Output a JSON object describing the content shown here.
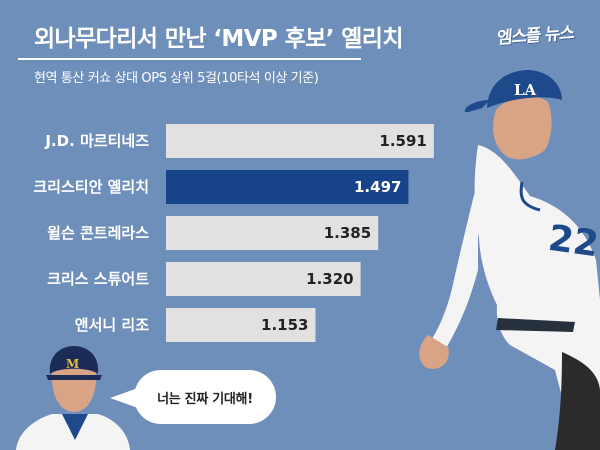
{
  "header": {
    "title": "외나무다리서 만난 ‘MVP 후보’ 옐리치",
    "subtitle": "현역 통산 커쇼 상대 OPS 상위 5걸(10타석 이상 기준)",
    "logo": "엠스플 뉴스"
  },
  "chart_data": {
    "type": "bar",
    "orientation": "horizontal",
    "title": "외나무다리서 만난 ‘MVP 후보’ 옐리치",
    "subtitle": "현역 통산 커쇼 상대 OPS 상위 5걸(10타석 이상 기준)",
    "categories": [
      "J.D. 마르티네즈",
      "크리스티안 옐리치",
      "윌슨 콘트레라스",
      "크리스 스튜어트",
      "앤서니 리조"
    ],
    "values": [
      1.591,
      1.497,
      1.385,
      1.32,
      1.153
    ],
    "value_labels": [
      "1.591",
      "1.497",
      "1.385",
      "1.320",
      "1.153"
    ],
    "highlight_index": 1,
    "xlim": [
      0.6,
      1.61
    ],
    "grid": false,
    "legend": "none",
    "colors": {
      "bar": "#e1e1e1",
      "highlight": "#17438a",
      "label_default": "#222222",
      "label_highlight": "#ffffff"
    }
  },
  "callout": {
    "speech": "너는 진짜 기대해!"
  },
  "colors": {
    "background": "#6f8fbb",
    "jersey": "#f4f4f4",
    "team_blue": "#1e4a8c",
    "skin": "#d9a486"
  }
}
